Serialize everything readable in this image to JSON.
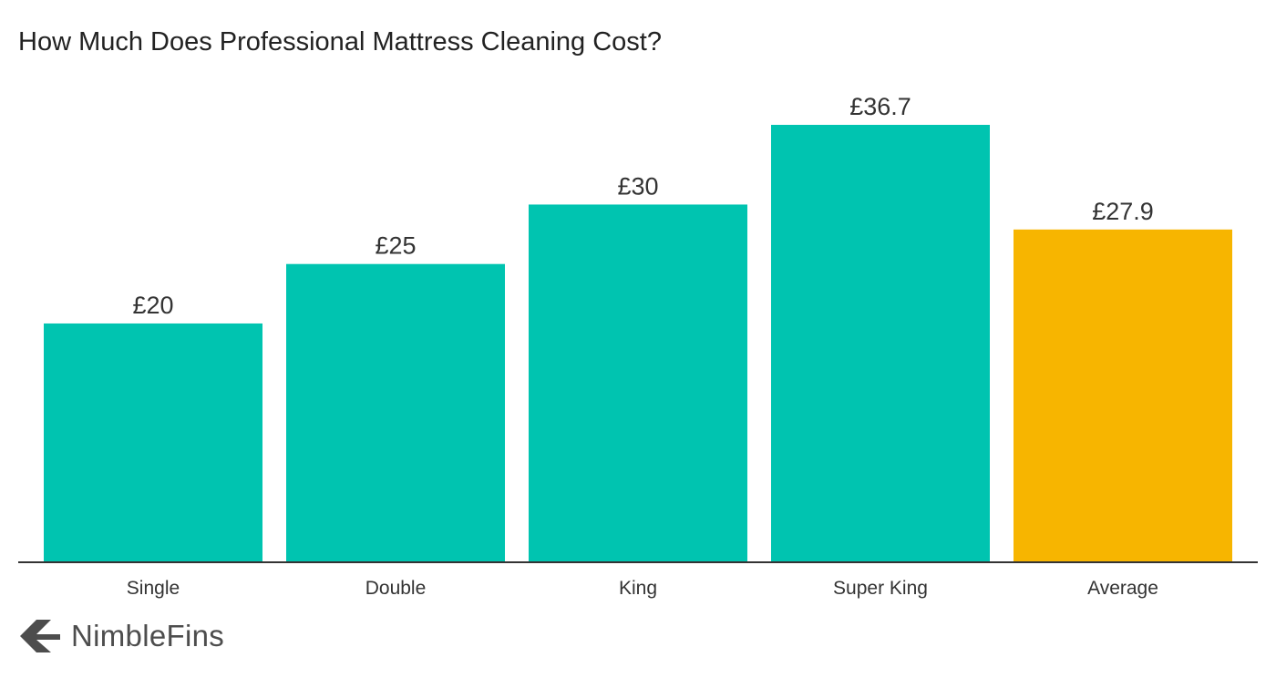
{
  "brand": {
    "name": "NimbleFins",
    "logo_icon": "chevron-arrow-logo-icon",
    "color": "#4d4d4d"
  },
  "colors": {
    "bar_primary": "#00c4b0",
    "bar_highlight": "#f7b500",
    "axis": "#333333",
    "text": "#222222"
  },
  "chart_data": {
    "type": "bar",
    "title": "How Much Does Professional Mattress Cleaning Cost?",
    "xlabel": "",
    "ylabel": "",
    "categories": [
      "Single",
      "Double",
      "King",
      "Super King",
      "Average"
    ],
    "values": [
      20,
      25,
      30,
      36.7,
      27.9
    ],
    "value_labels": [
      "£20",
      "£25",
      "£30",
      "£36.7",
      "£27.9"
    ],
    "bar_colors": [
      "#00c4b0",
      "#00c4b0",
      "#00c4b0",
      "#00c4b0",
      "#f7b500"
    ],
    "ylim": [
      0,
      36.7
    ],
    "grid": false,
    "legend": "none"
  }
}
